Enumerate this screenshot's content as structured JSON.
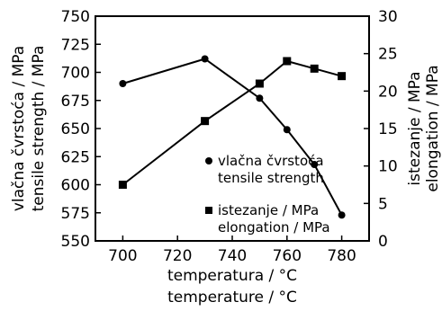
{
  "chart_data": {
    "type": "line",
    "x": [
      700,
      730,
      750,
      760,
      770,
      780
    ],
    "xlabel": [
      "temperatura / °C",
      "temperature / °C"
    ],
    "xlim": [
      690,
      790
    ],
    "xticks": [
      "700",
      "720",
      "740",
      "760",
      "780"
    ],
    "ylabel_left": [
      "vlačna čvrstoća / MPa",
      "tensile strength / MPa"
    ],
    "ylim_left": [
      550,
      750
    ],
    "yticks_left": [
      "550",
      "575",
      "600",
      "625",
      "650",
      "675",
      "700",
      "725",
      "750"
    ],
    "ylabel_right": [
      "istezanje / MPa",
      "elongation / MPa"
    ],
    "ylim_right": [
      0,
      30
    ],
    "yticks_right": [
      "0",
      "5",
      "10",
      "15",
      "20",
      "25",
      "30"
    ],
    "grid": false,
    "legend_position": "center-right",
    "series": [
      {
        "name": [
          "vlačna čvrstoća",
          "tensile strength"
        ],
        "axis": "left",
        "marker": "circle",
        "values": [
          690,
          712,
          677,
          649,
          618,
          573
        ]
      },
      {
        "name": [
          "istezanje / MPa",
          "elongation / MPa"
        ],
        "axis": "right",
        "marker": "square",
        "values": [
          7.5,
          16,
          21,
          24,
          23,
          22
        ]
      }
    ]
  }
}
